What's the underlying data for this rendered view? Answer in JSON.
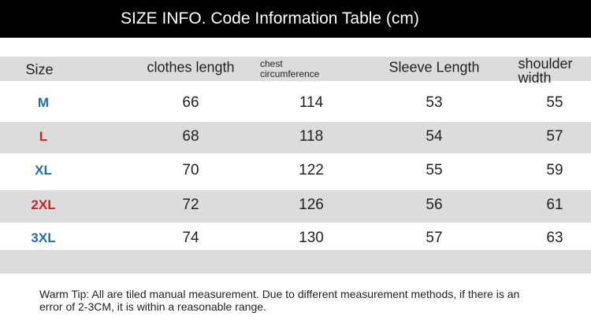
{
  "title": "SIZE INFO. Code Information Table (cm)",
  "headers": {
    "size": "Size",
    "clothes_length": "clothes length",
    "chest_line1": "chest",
    "chest_line2": "circumference",
    "sleeve_length": "Sleeve Length",
    "shoulder_line1": "shoulder",
    "shoulder_line2": "width"
  },
  "rows": [
    {
      "size": "M",
      "color": "#1f6fb0",
      "clothes_length": "66",
      "chest": "114",
      "sleeve": "53",
      "shoulder": "55"
    },
    {
      "size": "L",
      "color": "#d42020",
      "clothes_length": "68",
      "chest": "118",
      "sleeve": "54",
      "shoulder": "57"
    },
    {
      "size": "XL",
      "color": "#1f6fb0",
      "clothes_length": "70",
      "chest": "122",
      "sleeve": "55",
      "shoulder": "59"
    },
    {
      "size": "2XL",
      "color": "#d42020",
      "clothes_length": "72",
      "chest": "126",
      "sleeve": "56",
      "shoulder": "61"
    },
    {
      "size": "3XL",
      "color": "#1f6fb0",
      "clothes_length": "74",
      "chest": "130",
      "sleeve": "57",
      "shoulder": "63"
    }
  ],
  "tip": "Warm Tip: All are tiled manual measurement. Due to different measurement methods, if there is an error of 2-3CM, it is within a reasonable range."
}
